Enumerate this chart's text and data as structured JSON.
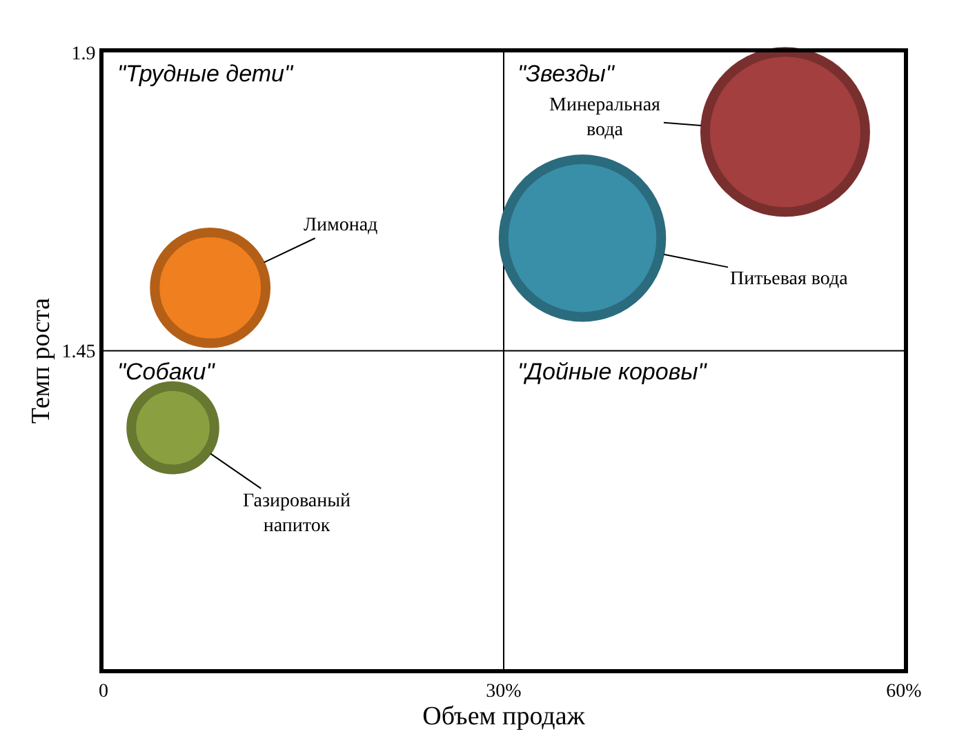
{
  "chart_data": {
    "type": "bubble",
    "xlabel": "Объем продаж",
    "ylabel": "Темп роста",
    "x": [
      51.1,
      35.9,
      8.0,
      5.2
    ],
    "values": [
      1.78,
      1.62,
      1.545,
      1.334
    ],
    "sizes": [
      1,
      0.97,
      0.48,
      0.27
    ],
    "colors": [
      "#a33f3f",
      "#3a8fa8",
      "#f07f1f",
      "#8aa040"
    ],
    "xlim": [
      0,
      60
    ],
    "xticks": [
      {
        "value": 0,
        "label": "0"
      },
      {
        "value": 30,
        "label": "30%"
      },
      {
        "value": 60,
        "label": "60%"
      }
    ],
    "ylim": [
      0.97,
      1.9
    ],
    "yticks": [
      1.45,
      1.9
    ],
    "ref_lines": [
      {
        "axis": "x",
        "value": 30,
        "color": "#000000"
      },
      {
        "axis": "y",
        "value": 1.45,
        "color": "#000000"
      }
    ],
    "grid": false,
    "legend": false,
    "annotations": [
      "\"Трудные дети\"",
      "\"Звезды\"",
      "\"Собаки\"",
      "\"Дойные коровы\"",
      {
        "text": "Минеральная вода",
        "x": 51.1,
        "y": 1.78
      },
      {
        "text": "Питьевая вода",
        "x": 35.9,
        "y": 1.62
      },
      {
        "text": "Лимонад",
        "x": 8.0,
        "y": 1.545
      },
      {
        "text": "Газированый напиток",
        "x": 5.2,
        "y": 1.334
      }
    ]
  }
}
